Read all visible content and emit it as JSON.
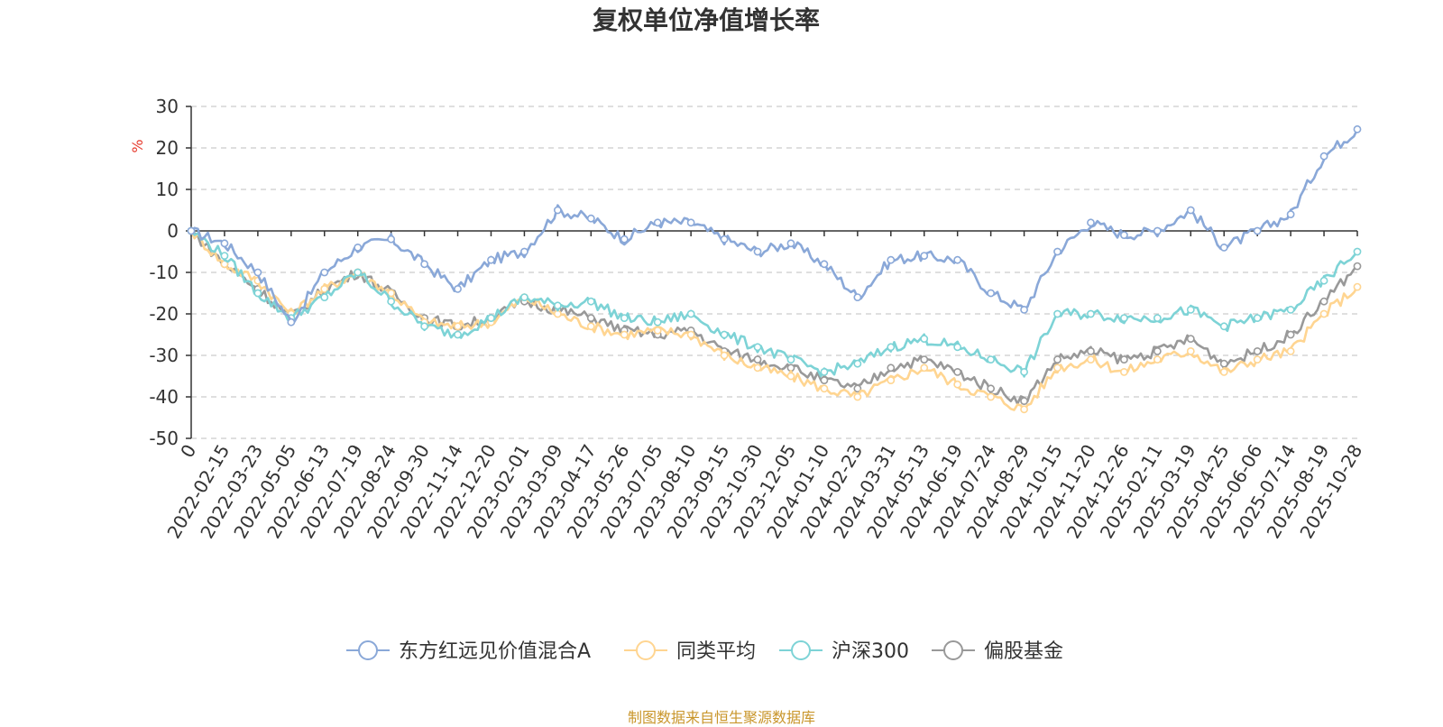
{
  "chart_data": {
    "type": "line",
    "title": "复权单位净值增长率",
    "ylabel": "%",
    "xlabel": "",
    "ylim": [
      -50,
      30
    ],
    "yticks": [
      30,
      20,
      10,
      0,
      -10,
      -20,
      -30,
      -40,
      -50
    ],
    "categories": [
      "0",
      "2022-02-15",
      "2022-03-23",
      "2022-05-05",
      "2022-06-13",
      "2022-07-19",
      "2022-08-24",
      "2022-09-30",
      "2022-11-14",
      "2022-12-20",
      "2023-02-01",
      "2023-03-09",
      "2023-04-17",
      "2023-05-26",
      "2023-07-05",
      "2023-08-10",
      "2023-09-15",
      "2023-10-30",
      "2023-12-05",
      "2024-01-10",
      "2024-02-23",
      "2024-03-31",
      "2024-05-13",
      "2024-06-19",
      "2024-07-24",
      "2024-08-29",
      "2024-10-15",
      "2024-11-20",
      "2024-12-26",
      "2025-02-11",
      "2025-03-19",
      "2025-04-25",
      "2025-06-06",
      "2025-07-14",
      "2025-08-19",
      "2025-10-28"
    ],
    "series": [
      {
        "name": "东方红远见价值混合A",
        "color": "#8aa8d8",
        "values": [
          0,
          -3,
          -10,
          -22,
          -10,
          -4,
          -2,
          -8,
          -14,
          -7,
          -5,
          5,
          3,
          -2,
          2,
          2,
          -2,
          -5,
          -3,
          -8,
          -16,
          -7,
          -6,
          -7,
          -15,
          -19,
          -5,
          2,
          -1,
          0,
          5,
          -4,
          0,
          4,
          18,
          24.5
        ]
      },
      {
        "name": "同类平均",
        "color": "#ffd591",
        "values": [
          0,
          -8,
          -12,
          -20,
          -14,
          -10,
          -15,
          -22,
          -23,
          -22,
          -16,
          -20,
          -23,
          -25,
          -24,
          -25,
          -30,
          -33,
          -35,
          -38,
          -40,
          -36,
          -33,
          -37,
          -40,
          -43,
          -33,
          -31,
          -34,
          -31,
          -29,
          -34,
          -31,
          -29,
          -20,
          -13.5
        ]
      },
      {
        "name": "沪深300",
        "color": "#7dd3d6",
        "values": [
          0,
          -6,
          -15,
          -21,
          -16,
          -10,
          -17,
          -23,
          -25,
          -21,
          -16,
          -18,
          -17,
          -21,
          -22,
          -20,
          -25,
          -28,
          -31,
          -34,
          -32,
          -28,
          -26,
          -28,
          -31,
          -34,
          -20,
          -20,
          -21,
          -21,
          -19,
          -23,
          -21,
          -19,
          -12,
          -5
        ]
      },
      {
        "name": "偏股基金",
        "color": "#999999",
        "values": [
          0,
          -8,
          -14,
          -21,
          -14,
          -10,
          -15,
          -21,
          -23,
          -21,
          -17,
          -19,
          -21,
          -24,
          -25,
          -24,
          -29,
          -31,
          -33,
          -36,
          -38,
          -33,
          -31,
          -34,
          -38,
          -41,
          -31,
          -29,
          -31,
          -29,
          -26,
          -32,
          -29,
          -25,
          -17,
          -8.5
        ]
      }
    ],
    "legend_position": "bottom",
    "grid": "dashed horizontal"
  },
  "source": "制图数据来自恒生聚源数据库"
}
